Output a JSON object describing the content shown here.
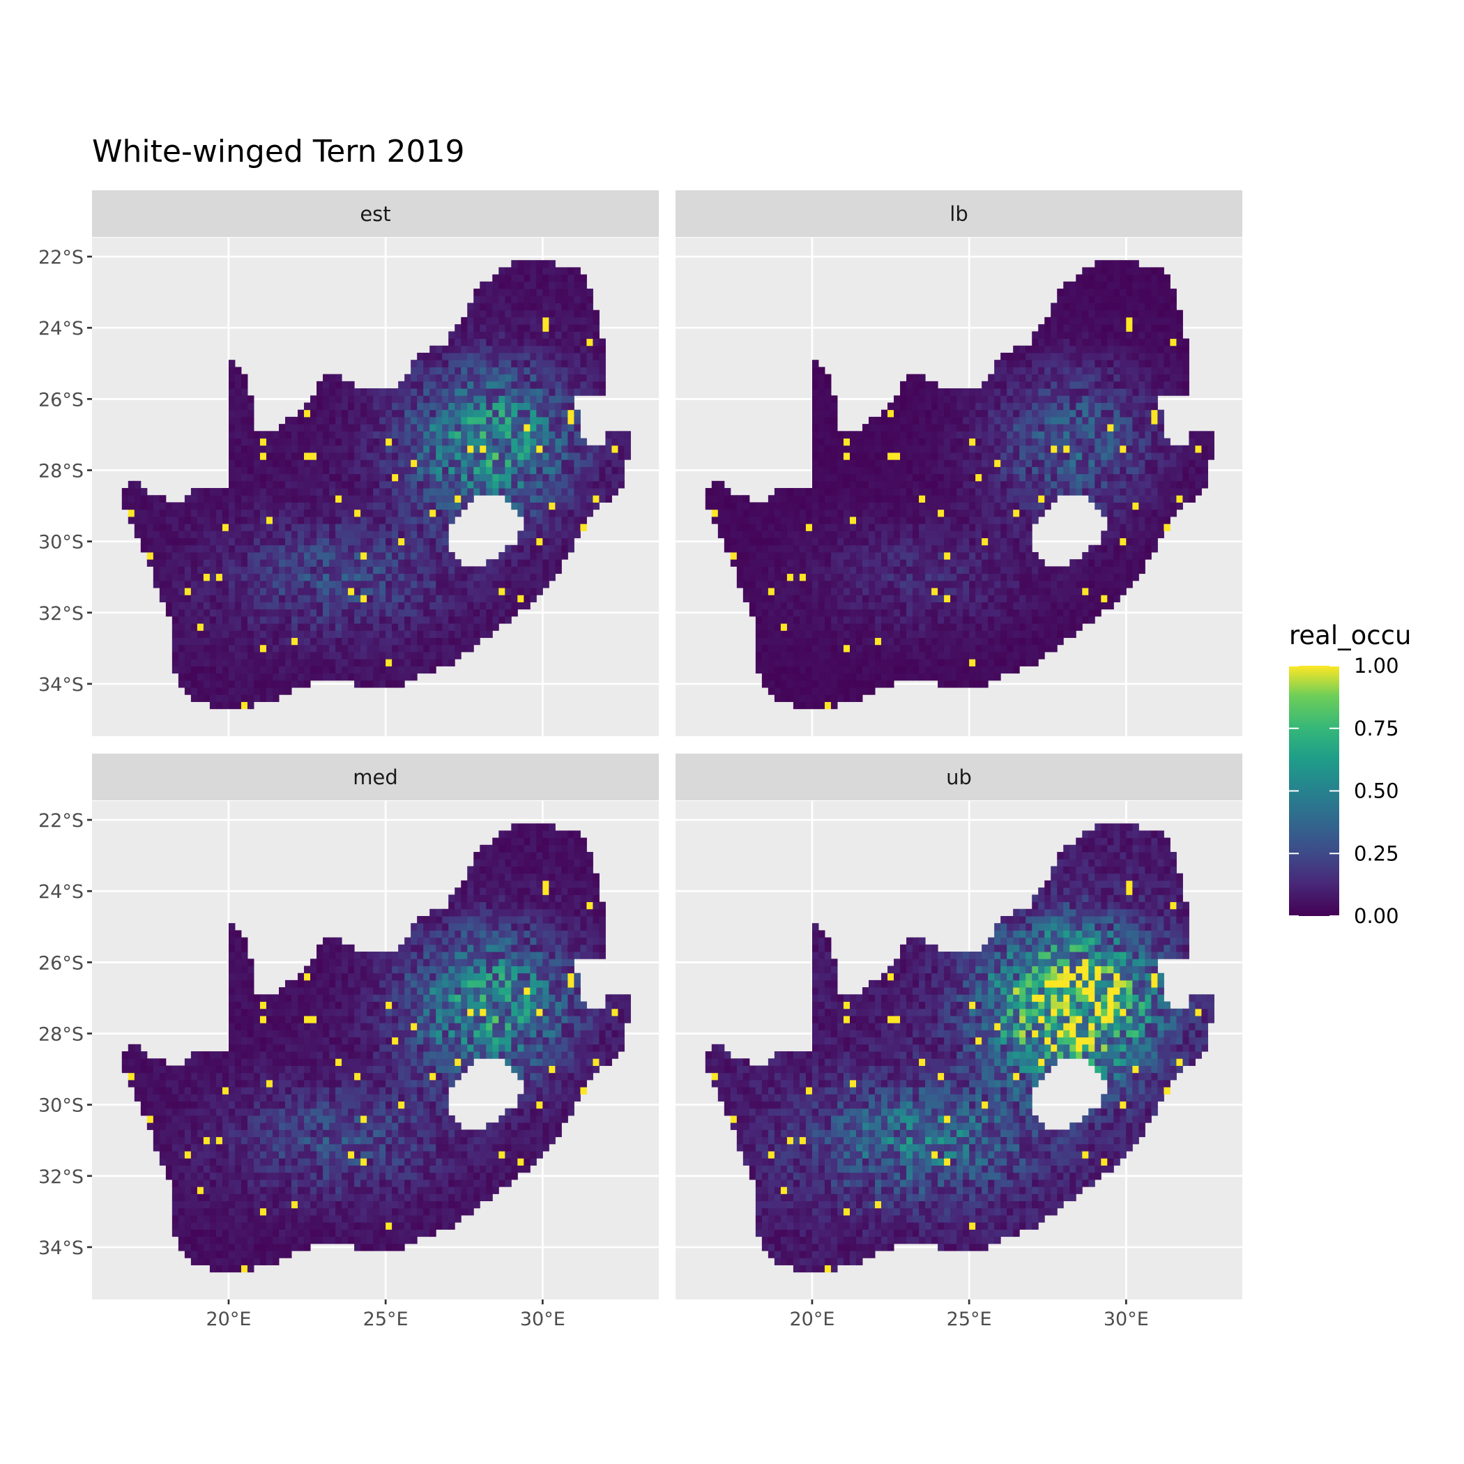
{
  "chart_data": {
    "type": "heatmap",
    "title": "White-winged Tern 2019",
    "facets": [
      "est",
      "lb",
      "med",
      "ub"
    ],
    "x_ticks": [
      {
        "value": 20,
        "label": "20°E"
      },
      {
        "value": 25,
        "label": "25°E"
      },
      {
        "value": 30,
        "label": "30°E"
      }
    ],
    "y_ticks": [
      {
        "value": -22,
        "label": "22°S"
      },
      {
        "value": -24,
        "label": "24°S"
      },
      {
        "value": -26,
        "label": "26°S"
      },
      {
        "value": -28,
        "label": "28°S"
      },
      {
        "value": -30,
        "label": "30°S"
      },
      {
        "value": -32,
        "label": "32°S"
      },
      {
        "value": -34,
        "label": "34°S"
      }
    ],
    "xlim": [
      15.65,
      33.7
    ],
    "ylim": [
      -35.47,
      -21.47
    ],
    "grid": true,
    "legend": {
      "title": "real_occu",
      "placement": "right",
      "colormap": "viridis",
      "range": [
        0,
        1
      ],
      "ticks": [
        "0.00",
        "0.25",
        "0.50",
        "0.75",
        "1.00"
      ],
      "colors": [
        "#440154",
        "#3b528b",
        "#21908c",
        "#5dc863",
        "#fde725"
      ]
    },
    "colors": {
      "panel_background": "#ebebeb",
      "strip_background": "#d9d9d9",
      "grid": "#ffffff"
    }
  }
}
